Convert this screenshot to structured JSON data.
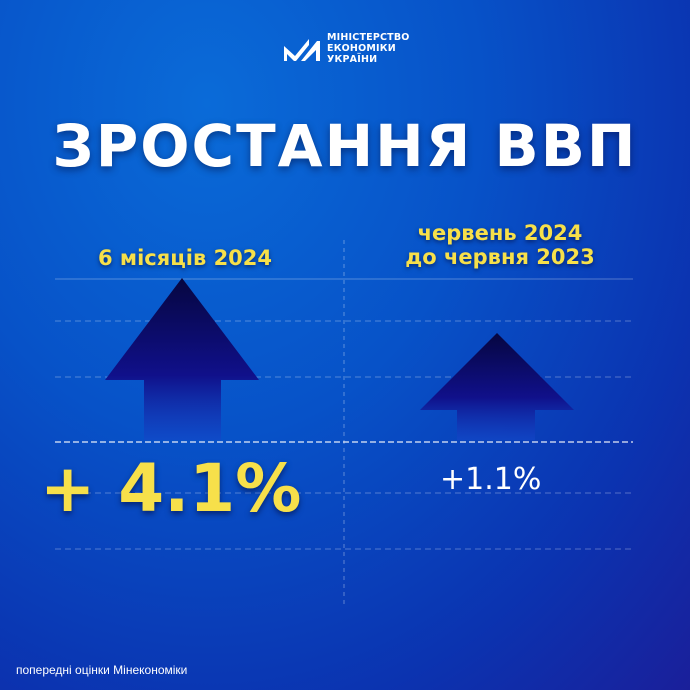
{
  "logo": {
    "lines": [
      "МІНІСТЕРСТВО",
      "ЕКОНОМІКИ",
      "УКРАЇНИ"
    ]
  },
  "title": "ЗРОСТАННЯ ВВП",
  "left": {
    "label": "6 місяців 2024",
    "value": "+ 4.1%"
  },
  "right": {
    "label_line1": "червень 2024",
    "label_line2": "до червня 2023",
    "value": "+1.1%"
  },
  "footnote": "попередні оцінки Мінекономіки",
  "colors": {
    "accent": "#f7e04a",
    "background": "#0752c8",
    "arrow": "#0a0a5e"
  }
}
